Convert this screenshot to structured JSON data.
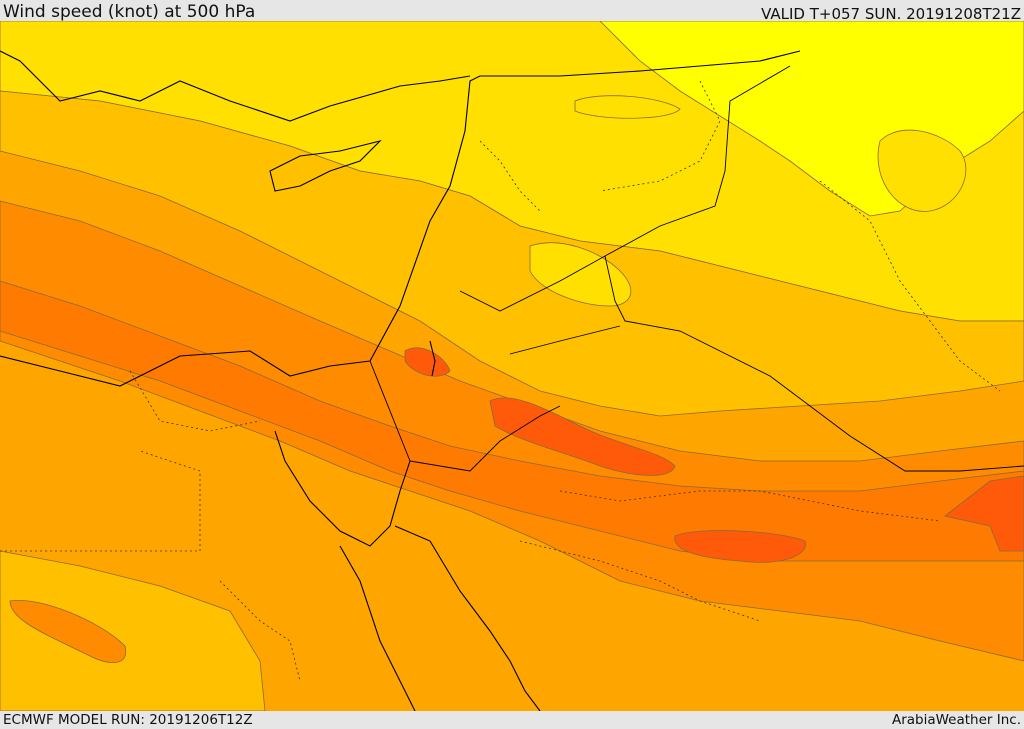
{
  "header": {
    "title": "Wind speed (knot) at 500 hPa",
    "valid": "VALID T+057 SUN. 20191208T21Z"
  },
  "footer": {
    "model_run": "ECMWF MODEL RUN: 20191206T12Z",
    "credit": "ArabiaWeather Inc."
  },
  "map": {
    "variable": "wind speed at 500 hPa",
    "colors": {
      "lightest": "#ffff00",
      "light": "#ffe000",
      "mid_light": "#ffc000",
      "mid": "#ffa500",
      "mid_dark": "#ff8c00",
      "dark": "#ff7a00",
      "darkest": "#ff5a0a"
    }
  }
}
